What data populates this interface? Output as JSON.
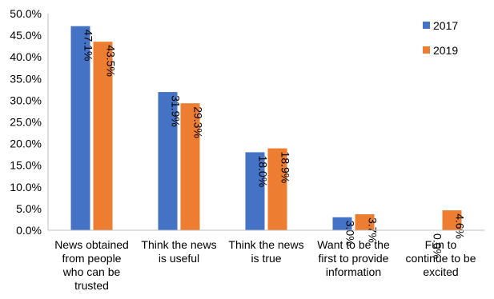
{
  "chart_data": {
    "type": "bar",
    "categories": [
      [
        "News obtained",
        "from people",
        "who can be",
        "trusted"
      ],
      [
        "Think the news",
        "is useful"
      ],
      [
        "Think the news",
        "is true"
      ],
      [
        "Want to be the",
        "first to provide",
        "information"
      ],
      [
        "Fun to",
        "continue to be",
        "excited"
      ]
    ],
    "series": [
      {
        "name": "2017",
        "color": "#4472C4",
        "values": [
          47.1,
          31.9,
          18.0,
          3.0,
          0.0
        ],
        "labels": [
          "47.1%",
          "31.9%",
          "18.0%",
          "3.0%",
          "0.0%"
        ]
      },
      {
        "name": "2019",
        "color": "#ED7D31",
        "values": [
          43.5,
          29.3,
          18.9,
          3.7,
          4.6
        ],
        "labels": [
          "43.5%",
          "29.3%",
          "18.9%",
          "3.7%",
          "4.6%"
        ]
      }
    ],
    "ylim": [
      0,
      50
    ],
    "yticks": [
      0,
      5,
      10,
      15,
      20,
      25,
      30,
      35,
      40,
      45,
      50
    ],
    "ytick_labels": [
      "0.0%",
      "5.0%",
      "10.0%",
      "15.0%",
      "20.0%",
      "25.0%",
      "30.0%",
      "35.0%",
      "40.0%",
      "45.0%",
      "50.0%"
    ],
    "legend_position": "top-right",
    "grid": false
  }
}
